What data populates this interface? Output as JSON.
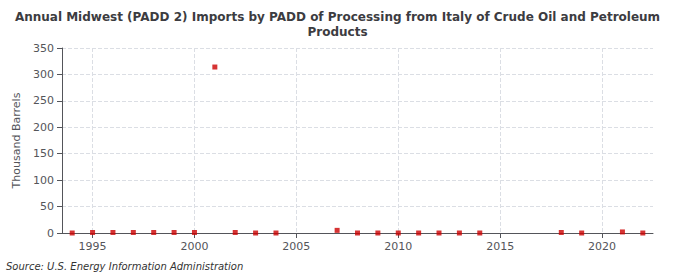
{
  "chart_data": {
    "type": "scatter",
    "title": "Annual Midwest (PADD 2) Imports by PADD of Processing from Italy of Crude Oil and Petroleum\nProducts",
    "ylabel": "Thousand Barrels",
    "annotations": [
      "Source: U.S. Energy Information Administration"
    ],
    "x": [
      1994,
      1995,
      1996,
      1997,
      1998,
      1999,
      2000,
      2001,
      2002,
      2003,
      2004,
      2007,
      2008,
      2009,
      2010,
      2011,
      2012,
      2013,
      2014,
      2018,
      2019,
      2021,
      2022
    ],
    "values": [
      0,
      1,
      1,
      1,
      1,
      1,
      1,
      314,
      1,
      0,
      0,
      5,
      0,
      0,
      0,
      0,
      0,
      0,
      0,
      1,
      0,
      2,
      0
    ],
    "color": "#cc0000",
    "marker": "square",
    "xlim": [
      1993.5,
      2022.5
    ],
    "xticks": [
      1995,
      2000,
      2005,
      2010,
      2015,
      2020
    ],
    "ylim": [
      0,
      350
    ],
    "yticks": [
      0,
      50,
      100,
      150,
      200,
      250,
      300,
      350
    ],
    "grid": true
  }
}
